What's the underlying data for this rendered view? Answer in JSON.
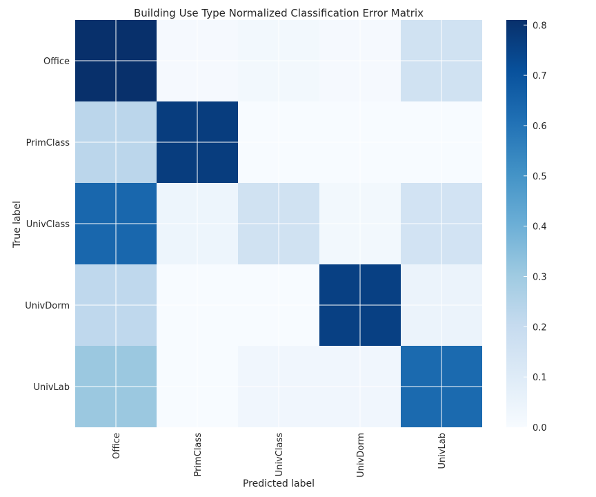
{
  "chart_data": {
    "type": "heatmap",
    "title": "Building Use Type Normalized Classification Error Matrix",
    "xlabel": "Predicted label",
    "ylabel": "True label",
    "x_categories": [
      "Office",
      "PrimClass",
      "UnivClass",
      "UnivDorm",
      "UnivLab"
    ],
    "y_categories": [
      "Office",
      "PrimClass",
      "UnivClass",
      "UnivDorm",
      "UnivLab"
    ],
    "values": [
      [
        0.81,
        0.01,
        0.02,
        0.01,
        0.16
      ],
      [
        0.23,
        0.77,
        0.0,
        0.0,
        0.0
      ],
      [
        0.64,
        0.04,
        0.16,
        0.02,
        0.15
      ],
      [
        0.22,
        0.0,
        0.0,
        0.76,
        0.05
      ],
      [
        0.31,
        0.0,
        0.03,
        0.03,
        0.63
      ]
    ],
    "colormap": "Blues",
    "colorbar": {
      "vmin": 0.0,
      "vmax": 0.81,
      "ticks": [
        0.0,
        0.1,
        0.2,
        0.3,
        0.4,
        0.5,
        0.6,
        0.7,
        0.8
      ],
      "tick_labels": [
        "0.0",
        "0.1",
        "0.2",
        "0.3",
        "0.4",
        "0.5",
        "0.6",
        "0.7",
        "0.8"
      ]
    },
    "grid": true,
    "grid_color": "#ffffff"
  }
}
